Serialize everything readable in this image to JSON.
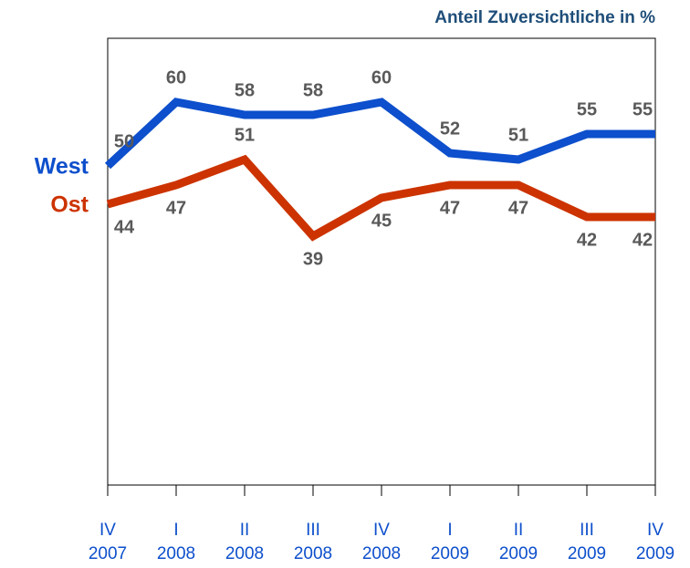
{
  "chart_data": {
    "type": "line",
    "title": "Anteil Zuversichtliche in %",
    "categories": [
      [
        "IV",
        "2007"
      ],
      [
        "I",
        "2008"
      ],
      [
        "II",
        "2008"
      ],
      [
        "III",
        "2008"
      ],
      [
        "IV",
        "2008"
      ],
      [
        "I",
        "2009"
      ],
      [
        "II",
        "2009"
      ],
      [
        "III",
        "2009"
      ],
      [
        "IV",
        "2009"
      ]
    ],
    "series": [
      {
        "name": "West",
        "color": "#0d4fcc",
        "values": [
          50,
          60,
          58,
          58,
          60,
          52,
          51,
          55,
          55
        ]
      },
      {
        "name": "Ost",
        "color": "#cc3300",
        "values": [
          44,
          47,
          51,
          39,
          45,
          47,
          47,
          42,
          42
        ]
      }
    ],
    "ylim": [
      0,
      70
    ],
    "grid": false
  }
}
